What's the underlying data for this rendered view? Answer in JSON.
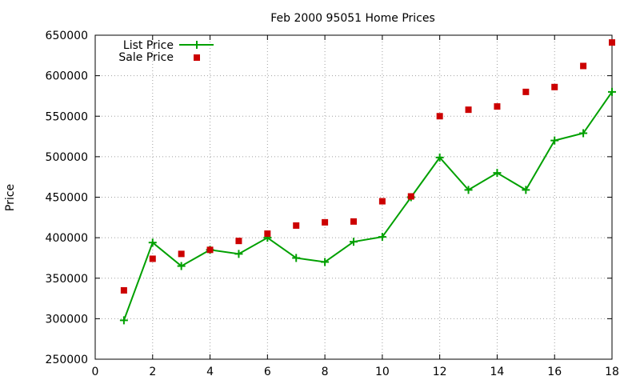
{
  "chart_data": {
    "type": "line",
    "title": "Feb 2000 95051 Home Prices",
    "xlabel": "",
    "ylabel": "Price",
    "xlim": [
      0,
      18
    ],
    "ylim": [
      250000,
      650000
    ],
    "x_ticks": [
      0,
      2,
      4,
      6,
      8,
      10,
      12,
      14,
      16,
      18
    ],
    "y_ticks": [
      250000,
      300000,
      350000,
      400000,
      450000,
      500000,
      550000,
      600000,
      650000
    ],
    "grid": true,
    "legend_position": "top-left",
    "series": [
      {
        "name": "List Price",
        "style": "line+plus",
        "color": "#00a000",
        "x": [
          1,
          2,
          3,
          4,
          5,
          6,
          7,
          8,
          9,
          10,
          11,
          12,
          13,
          14,
          15,
          16,
          17,
          18
        ],
        "values": [
          298000,
          394000,
          365000,
          385000,
          380000,
          400000,
          375000,
          370000,
          395000,
          401000,
          450000,
          499000,
          459000,
          480000,
          459000,
          520000,
          529000,
          580000
        ]
      },
      {
        "name": "Sale Price",
        "style": "points-square",
        "color": "#cc0000",
        "x": [
          1,
          2,
          3,
          4,
          5,
          6,
          7,
          8,
          9,
          10,
          11,
          12,
          13,
          14,
          15,
          16,
          17,
          18
        ],
        "values": [
          335000,
          374000,
          380000,
          385000,
          396000,
          405000,
          415000,
          419000,
          420000,
          445000,
          451000,
          550000,
          558000,
          562000,
          580000,
          586000,
          612000,
          641000
        ]
      }
    ]
  }
}
